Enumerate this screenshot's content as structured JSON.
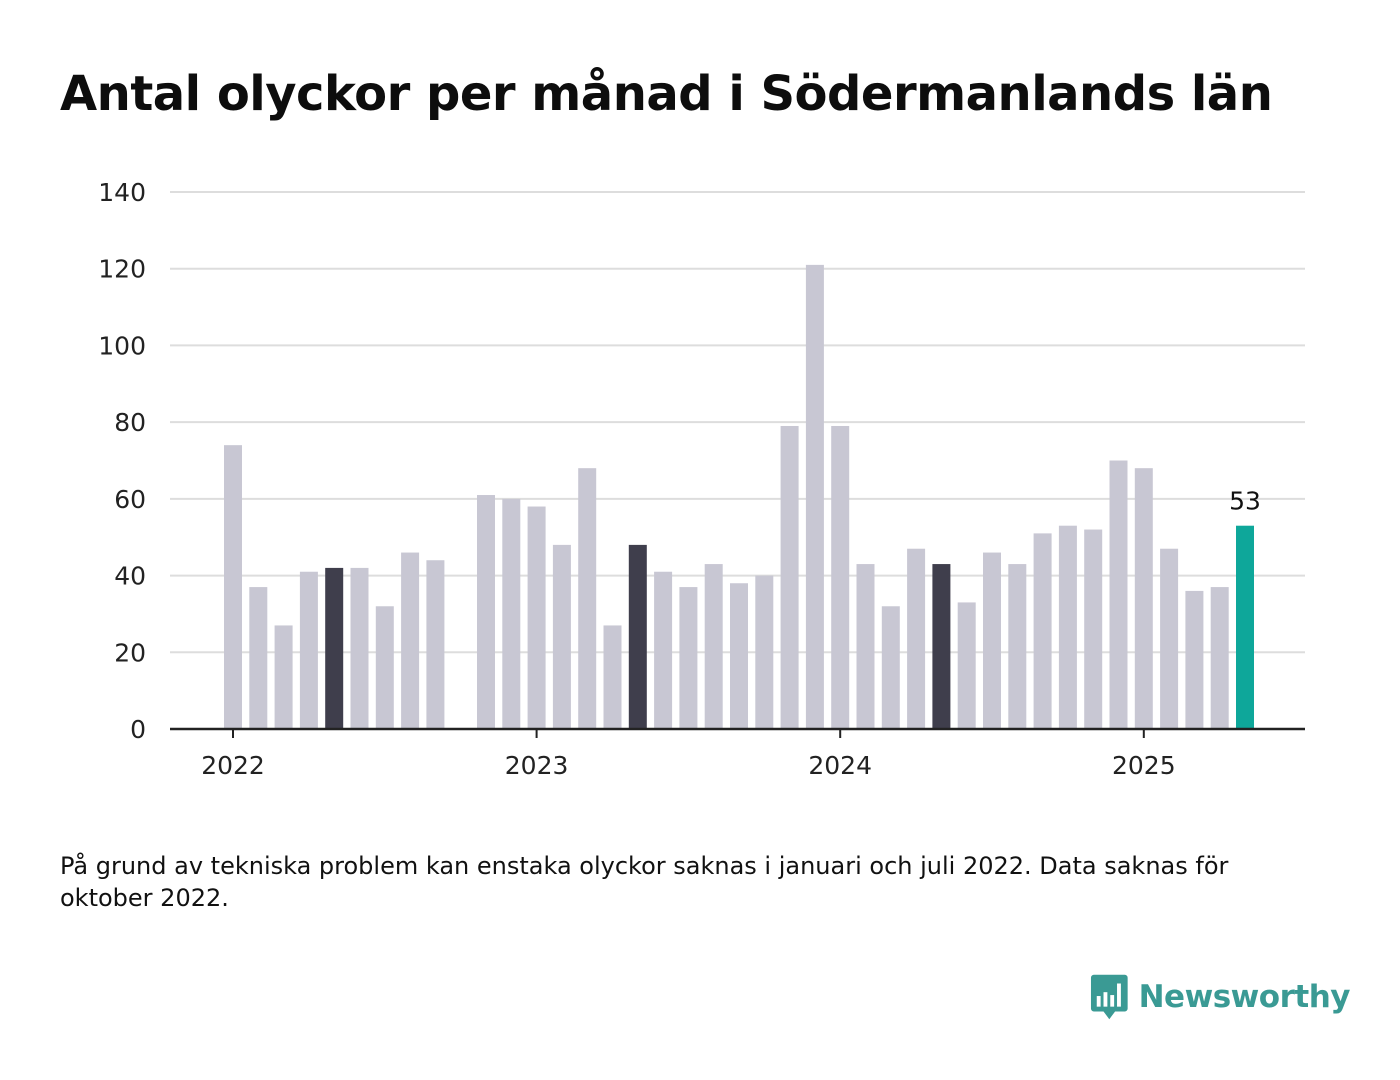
{
  "chart_data": {
    "type": "bar",
    "title": "Antal olyckor per månad i Södermanlands län",
    "x_start": "2022-01",
    "x_end": "2025-05",
    "categories": [
      "2022-01",
      "2022-02",
      "2022-03",
      "2022-04",
      "2022-05",
      "2022-06",
      "2022-07",
      "2022-08",
      "2022-09",
      "2022-10",
      "2022-11",
      "2022-12",
      "2023-01",
      "2023-02",
      "2023-03",
      "2023-04",
      "2023-05",
      "2023-06",
      "2023-07",
      "2023-08",
      "2023-09",
      "2023-10",
      "2023-11",
      "2023-12",
      "2024-01",
      "2024-02",
      "2024-03",
      "2024-04",
      "2024-05",
      "2024-06",
      "2024-07",
      "2024-08",
      "2024-09",
      "2024-10",
      "2024-11",
      "2024-12",
      "2025-01",
      "2025-02",
      "2025-03",
      "2025-04",
      "2025-05"
    ],
    "values": [
      74,
      37,
      27,
      41,
      42,
      42,
      32,
      46,
      44,
      null,
      61,
      60,
      58,
      48,
      68,
      27,
      48,
      41,
      37,
      43,
      38,
      40,
      79,
      121,
      79,
      43,
      32,
      47,
      43,
      33,
      46,
      43,
      51,
      53,
      52,
      70,
      68,
      47,
      36,
      37,
      53
    ],
    "highlight_dark": [
      "2022-05",
      "2023-05",
      "2024-05"
    ],
    "highlight_latest": "2025-05",
    "ylim": [
      0,
      140
    ],
    "yticks": [
      0,
      20,
      40,
      60,
      80,
      100,
      120,
      140
    ],
    "xtick_labels": [
      "2022",
      "2023",
      "2024",
      "2025"
    ],
    "xlabel": "",
    "ylabel": "",
    "grid": true,
    "legend": "none",
    "annotation": {
      "category": "2025-05",
      "text": "53"
    },
    "colors": {
      "default": "#c8c7d3",
      "dark": "#3f3e4c",
      "latest": "#0ea79a",
      "grid": "#dddddd",
      "axis": "#222222"
    }
  },
  "footnote": "På grund av tekniska problem kan enstaka olyckor saknas i januari och juli 2022. Data saknas för oktober 2022.",
  "brand": {
    "name": "Newsworthy",
    "icon": "newsworthy-logo-icon",
    "color": "#3a9a94"
  }
}
